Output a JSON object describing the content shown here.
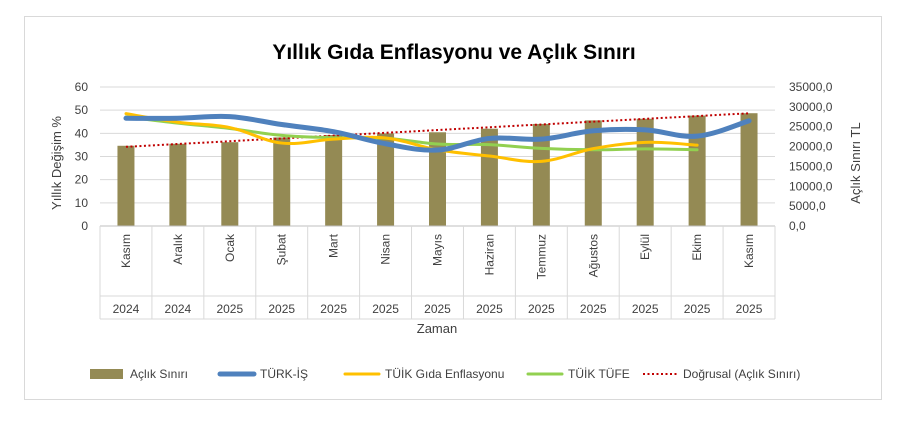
{
  "chart_data": {
    "type": "bar",
    "title": "Yıllık Gıda Enflasyonu ve Açlık Sınırı",
    "xlabel": "Zaman",
    "ylabel": "Yıllık Değişim %",
    "y2label": "Açlık Sınırı TL",
    "ylim": [
      0,
      60
    ],
    "y2lim": [
      0,
      35000
    ],
    "yticks": [
      "0",
      "10",
      "20",
      "30",
      "40",
      "50",
      "60"
    ],
    "y2ticks": [
      "0,0",
      "5000,0",
      "10000,0",
      "15000,0",
      "20000,0",
      "25000,0",
      "30000,0",
      "35000,0"
    ],
    "categories": [
      "Kasım",
      "Aralık",
      "Ocak",
      "Şubat",
      "Mart",
      "Nisan",
      "Mayıs",
      "Haziran",
      "Temmuz",
      "Ağustos",
      "Eylül",
      "Ekim",
      "Kasım"
    ],
    "years": [
      "2024",
      "2024",
      "2025",
      "2025",
      "2025",
      "2025",
      "2025",
      "2025",
      "2025",
      "2025",
      "2025",
      "2025",
      "2025"
    ],
    "grid": true,
    "legend_position": "bottom",
    "series": [
      {
        "name": "Açlık Sınırı",
        "kind": "bar",
        "axis": "right",
        "color": "#948A54",
        "values": [
          20200,
          20700,
          21100,
          22300,
          22900,
          23300,
          23600,
          24500,
          25700,
          26600,
          27000,
          27800,
          28400
        ]
      },
      {
        "name": "TÜRK-İŞ",
        "kind": "line",
        "axis": "left",
        "color": "#4F81BD",
        "values": [
          46.5,
          46.5,
          47.2,
          43.8,
          40.7,
          35.5,
          32.8,
          37.8,
          37.5,
          41.1,
          41.5,
          38.8,
          45.4
        ]
      },
      {
        "name": "TÜİK Gıda Enflasyonu",
        "kind": "line",
        "axis": "left",
        "color": "#FFC000",
        "values": [
          48.5,
          44.8,
          42.5,
          35.8,
          37.5,
          38.0,
          32.9,
          30.2,
          27.9,
          33.4,
          36.1,
          34.9,
          null
        ]
      },
      {
        "name": "TÜİK TÜFE",
        "kind": "line",
        "axis": "left",
        "color": "#92D050",
        "values": [
          47.1,
          44.4,
          42.1,
          39.1,
          38.1,
          37.9,
          35.4,
          35.1,
          33.5,
          32.9,
          33.3,
          32.9,
          null
        ]
      },
      {
        "name": "Doğrusal (Açlık Sınırı)",
        "kind": "trend",
        "axis": "right",
        "color": "#C00000",
        "of": "Açlık Sınırı"
      }
    ]
  }
}
